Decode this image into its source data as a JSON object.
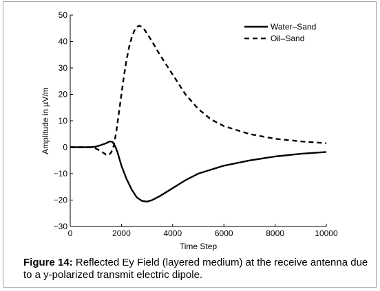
{
  "chart_data": {
    "type": "line",
    "xlabel": "Time Step",
    "ylabel": "Amplitude in µV/m",
    "xlim": [
      0,
      10000
    ],
    "ylim": [
      -30,
      50
    ],
    "xticks": [
      0,
      2000,
      4000,
      6000,
      8000,
      10000
    ],
    "yticks": [
      -30,
      -20,
      -10,
      0,
      10,
      20,
      30,
      40,
      50
    ],
    "grid": false,
    "legend_position": "top-right",
    "series": [
      {
        "name": "Water–Sand",
        "style": "solid",
        "color": "#000000",
        "x": [
          0,
          800,
          1000,
          1200,
          1400,
          1550,
          1650,
          1750,
          1850,
          2000,
          2200,
          2400,
          2600,
          2800,
          3000,
          3200,
          3500,
          4000,
          4500,
          5000,
          6000,
          7000,
          8000,
          9000,
          10000
        ],
        "y": [
          0,
          0,
          0.2,
          0.8,
          1.5,
          2.2,
          2.0,
          0.5,
          -2.0,
          -7.0,
          -12.0,
          -16.0,
          -19.0,
          -20.3,
          -20.6,
          -20.0,
          -18.5,
          -15.5,
          -12.5,
          -10.0,
          -7.0,
          -5.0,
          -3.5,
          -2.5,
          -1.8
        ]
      },
      {
        "name": "Oil–Sand",
        "style": "dashed",
        "color": "#000000",
        "x": [
          0,
          800,
          1000,
          1200,
          1400,
          1500,
          1600,
          1700,
          1800,
          1900,
          2000,
          2100,
          2200,
          2300,
          2400,
          2500,
          2600,
          2700,
          2800,
          2900,
          3000,
          3200,
          3500,
          4000,
          4500,
          5000,
          5500,
          6000,
          7000,
          8000,
          9000,
          10000
        ],
        "y": [
          0,
          0,
          -0.5,
          -1.5,
          -2.8,
          -3.0,
          -2.0,
          0.5,
          6.0,
          13.0,
          20.0,
          27.0,
          33.0,
          38.0,
          41.5,
          44.0,
          45.5,
          46.0,
          45.5,
          44.5,
          43.0,
          40.0,
          35.0,
          27.5,
          20.0,
          14.5,
          10.5,
          8.0,
          5.0,
          3.2,
          2.2,
          1.5
        ]
      }
    ]
  },
  "caption": {
    "label": "Figure 14:",
    "text": " Reflected Ey Field (layered medium) at the receive antenna due to a y-polarized transmit electric dipole."
  }
}
